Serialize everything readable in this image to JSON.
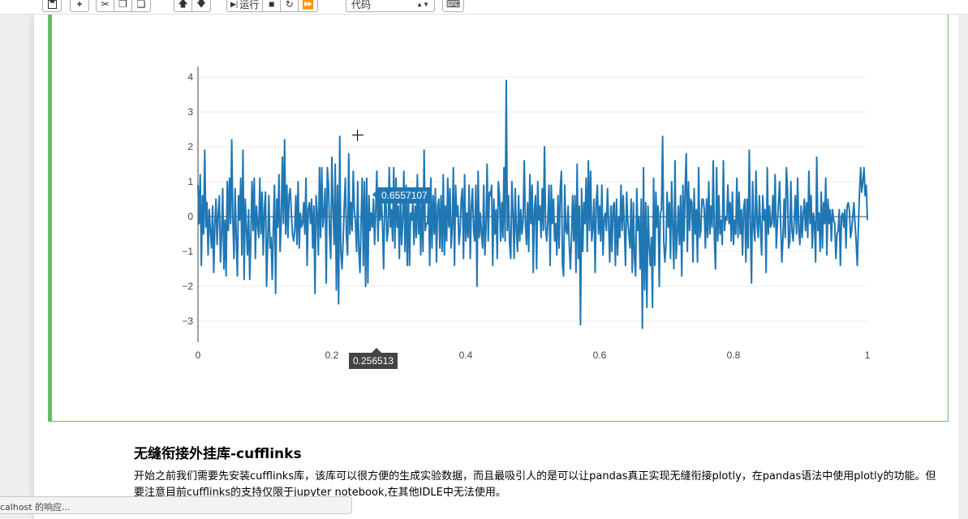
{
  "toolbar": {
    "run_label": "运行",
    "cell_type_select": "代码"
  },
  "markdown": {
    "heading": "无缝衔接外挂库-cufflinks",
    "paragraph": "开始之前我们需要先安装cufflinks库，该库可以很方便的生成实验数据，而且最吸引人的是可以让pandas真正实现无缝衔接plotly，在pandas语法中使用plotly的功能。但要注意目前cufflinks的支持仅限于jupyter notebook,在其他IDLE中无法使用。"
  },
  "status_bar": {
    "text": "calhost 的响应..."
  },
  "hover": {
    "y_value": "0.6557107",
    "x_value": "0.256513"
  },
  "colors": {
    "line": "#1f77b4",
    "cell_border": "#66bb6a"
  },
  "chart_data": {
    "type": "line",
    "title": "",
    "xlabel": "",
    "ylabel": "",
    "xlim": [
      0,
      1
    ],
    "ylim": [
      -3.6,
      4.3
    ],
    "x_ticks": [
      0,
      0.2,
      0.4,
      0.6,
      0.8,
      1
    ],
    "x_tick_labels": [
      "0",
      "0.2",
      "0.4",
      "0.6",
      "0.8",
      "1"
    ],
    "y_ticks": [
      -3,
      -2,
      -1,
      0,
      1,
      2,
      3,
      4
    ],
    "y_tick_labels": [
      "−3",
      "−2",
      "−1",
      "0",
      "1",
      "2",
      "3",
      "4"
    ],
    "grid": true,
    "series": [
      {
        "values": [
          0.9,
          -0.2,
          1.2,
          -1.4,
          0.6,
          -0.5,
          1.9,
          -0.3,
          0.4,
          -1.1,
          0.2,
          -0.4,
          -0.9,
          0.3,
          -1.6,
          -0.2,
          0.5,
          -0.8,
          0.1,
          0.6,
          -1.3,
          -0.5,
          0.8,
          -1.5,
          -0.1,
          -1.7,
          1.0,
          -0.4,
          1.1,
          -0.2,
          2.2,
          -0.1,
          -1.2,
          0.8,
          -0.6,
          -1.7,
          0.6,
          -0.1,
          1.1,
          -1.1,
          1.9,
          -1.8,
          0.5,
          -0.3,
          -1.1,
          0.2,
          -1.8,
          -0.6,
          1.0,
          -0.4,
          1.1,
          -1.2,
          0.3,
          -0.2,
          -0.6,
          1.1,
          -0.5,
          0.7,
          -1.1,
          0.2,
          0.7,
          -2.0,
          -0.7,
          0.6,
          -0.9,
          -0.6,
          -1.8,
          -0.3,
          0.9,
          -2.2,
          0.5,
          -0.3,
          1.2,
          -1.0,
          -0.1,
          1.7,
          -0.2,
          2.2,
          -0.5,
          0.9,
          -0.6,
          0.6,
          0.8,
          0.1,
          -0.5,
          -0.7,
          -0.4,
          0.6,
          -0.8,
          1.0,
          -0.9,
          0.1,
          -0.3,
          -0.2,
          0.4,
          -0.5,
          1.1,
          -1.4,
          0.2,
          0.4,
          -0.2,
          0.5,
          -0.9,
          0.3,
          -2.2,
          0.6,
          0.1,
          -1.1,
          1.4,
          -0.6,
          1.4,
          -0.3,
          0.1,
          0.8,
          -1.9,
          1.4,
          0.9,
          -0.5,
          -1.2,
          1.7,
          0.3,
          -0.8,
          1.5,
          -2.1,
          0.9,
          -2.5,
          2.3,
          -1.0,
          -1.5,
          -0.7,
          0.3,
          1.1,
          -0.6,
          -1.1,
          1.8,
          -0.5,
          0.4,
          -0.4,
          1.3,
          0.2,
          -0.2,
          -1.0,
          1.0,
          -1.0,
          -1.6,
          -0.1,
          1.1,
          -1.4,
          1.0,
          -2.0,
          1.1,
          -1.9,
          0.6,
          -0.4,
          0.1,
          -0.3,
          0.5,
          -0.8,
          0.2,
          1.3,
          -0.7,
          0.5,
          -0.1,
          0.5,
          -0.2,
          -1.5,
          0.4,
          0.6,
          -0.7,
          -0.4,
          1.4,
          -0.3,
          0.2,
          -0.7,
          1.4,
          -0.9,
          1.1,
          -0.3,
          0.3,
          -1.2,
          0.7,
          -0.8,
          -0.1,
          1.3,
          -1.0,
          0.9,
          -1.4,
          0.7,
          -1.4,
          0.1,
          -0.1,
          0.4,
          -0.8,
          0.3,
          -0.6,
          1.2,
          -0.5,
          0.6,
          -1.1,
          0.6,
          -1.0,
          1.9,
          -0.4,
          -0.2,
          -0.2,
          0.5,
          -1.4,
          1.1,
          -0.9,
          0.6,
          -0.5,
          0.8,
          -1.3,
          0.3,
          0.5,
          -0.9,
          0.6,
          -1.0,
          1.2,
          -1.1,
          0.3,
          -0.7,
          1.1,
          -0.3,
          0.8,
          -0.9,
          -0.3,
          1.4,
          -1.4,
          0.9,
          0.0,
          0.3,
          -0.8,
          -0.4,
          0.5,
          0.8,
          -1.2,
          1.2,
          -0.7,
          0.1,
          -0.6,
          0.9,
          -1.2,
          0.3,
          0.8,
          -0.4,
          -0.7,
          0.9,
          -2.0,
          1.3,
          -0.6,
          0.1,
          -0.5,
          -0.9,
          0.9,
          -1.1,
          -0.3,
          1.5,
          -0.7,
          0.7,
          0.6,
          0.9,
          -1.4,
          0.5,
          -0.5,
          0.2,
          -1.2,
          1.0,
          0.6,
          -0.7,
          0.4,
          -0.6,
          1.4,
          -0.7,
          3.9,
          -0.4,
          0.6,
          -0.8,
          -1.2,
          1.0,
          0.1,
          -1.2,
          0.8,
          -0.4,
          -1.0,
          0.6,
          -0.7,
          0.2,
          -0.5,
          -0.1,
          1.6,
          -0.2,
          -0.8,
          0.4,
          -1.0,
          1.2,
          -0.2,
          0.9,
          -1.6,
          0.2,
          0.6,
          -1.5,
          1.0,
          -0.1,
          0.3,
          -0.6,
          0.8,
          -0.4,
          2.0,
          -0.3,
          -0.7,
          -0.1,
          0.9,
          -1.4,
          0.9,
          -0.2,
          0.5,
          -0.7,
          -0.2,
          -1.1,
          0.6,
          -0.9,
          0.8,
          1.3,
          -1.4,
          -1.7,
          0.9,
          -0.4,
          -0.5,
          0.3,
          -0.8,
          -1.5,
          -0.6,
          0.6,
          -0.7,
          0.6,
          -1.6,
          1.5,
          -1.2,
          0.3,
          -3.1,
          0.8,
          -1.0,
          0.4,
          -0.2,
          1.1,
          -1.0,
          1.6,
          -0.4,
          1.3,
          -0.7,
          -0.3,
          0.5,
          -1.6,
          0.4,
          0.9,
          -0.5,
          0.3,
          -0.7,
          0.9,
          -1.1,
          -0.1,
          0.1,
          -0.4,
          0.8,
          -0.2,
          -1.3,
          0.3,
          -1.0,
          0.3,
          0.4,
          -1.4,
          0.5,
          -1.1,
          0.0,
          -0.6,
          0.9,
          -0.4,
          0.6,
          -0.3,
          -1.4,
          0.7,
          -0.1,
          -0.5,
          -0.9,
          0.5,
          -1.6,
          0.4,
          -1.2,
          -1.7,
          0.8,
          -0.4,
          0.0,
          -1.5,
          0.5,
          -3.2,
          1.4,
          -2.1,
          0.4,
          -2.6,
          0.3,
          -0.8,
          -1.4,
          -0.6,
          -2.6,
          1.1,
          -1.4,
          0.7,
          -0.3,
          0.3,
          -2.0,
          0.1,
          0.2,
          2.3,
          -0.7,
          -1.3,
          -0.8,
          0.7,
          -0.3,
          0.4,
          -1.2,
          1.0,
          -0.3,
          -1.5,
          1.6,
          -1.2,
          -0.5,
          0.3,
          -0.8,
          0.6,
          -1.7,
          0.9,
          -0.7,
          0.8,
          1.8,
          -1.0,
          1.0,
          -0.4,
          0.5,
          0.4,
          -1.3,
          0.8,
          -0.5,
          0.2,
          -1.3,
          1.4,
          -0.6,
          -0.4,
          0.5,
          0.5,
          0.2,
          -0.9,
          0.5,
          -0.6,
          1.0,
          -0.5,
          0.3,
          -0.3,
          1.6,
          -0.6,
          -1.5,
          1.4,
          -0.7,
          0.6,
          -0.5,
          -0.1,
          -0.8,
          1.6,
          -0.4,
          0.0,
          -0.1,
          0.9,
          -0.2,
          0.4,
          -0.7,
          0.7,
          -0.8,
          -0.1,
          -0.5,
          1.1,
          -0.6,
          0.7,
          -0.5,
          0.2,
          -1.1,
          0.2,
          0.5,
          -1.3,
          0.5,
          -0.9,
          1.9,
          -0.2,
          -1.9,
          1.0,
          -0.3,
          -0.7,
          1.3,
          -0.2,
          -0.6,
          0.6,
          -0.3,
          -1.1,
          0.6,
          -0.1,
          0.2,
          -1.6,
          1.4,
          -0.5,
          0.3,
          -0.3,
          -0.2,
          0.6,
          -0.3,
          1.2,
          -0.9,
          -0.2,
          0.4,
          1.0,
          -0.3,
          -1.3,
          -0.6,
          0.5,
          -0.6,
          1.4,
          0.8,
          -0.9,
          -0.7,
          1.0,
          -0.4,
          -0.7,
          -0.1,
          0.6,
          -0.5,
          1.1,
          -0.4,
          -0.8,
          0.3,
          -0.6,
          0.1,
          0.5,
          -0.4,
          0.4,
          -0.6,
          1.3,
          -0.2,
          0.6,
          -0.9,
          0.1,
          -0.2,
          -1.3,
          1.7,
          -0.4,
          0.1,
          -1.0,
          0.7,
          -0.9,
          0.4,
          -0.2,
          1.1,
          -1.1,
          0.5,
          -0.2,
          0.2,
          -0.7,
          0.2,
          -0.1,
          -0.2,
          -1.2,
          -0.5,
          -0.4,
          0.2,
          -1.4,
          0.0,
          0.1,
          -0.3,
          0.2,
          -0.9,
          0.3,
          0.4,
          0.2,
          -0.6,
          -0.4,
          0.0,
          0.4,
          -0.2,
          -0.7,
          -1.4,
          -0.3,
          0.7,
          1.4,
          0.7,
          1.0,
          1.4,
          0.6,
          0.9,
          -0.1
        ]
      }
    ]
  }
}
